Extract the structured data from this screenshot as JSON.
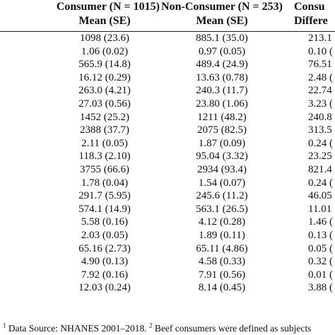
{
  "table": {
    "headers": {
      "consumer_line1": "Consumer (N = 1015)",
      "consumer_line2": "Mean (SE)",
      "nonconsumer_line1": "Non-Consumer (N = 253)",
      "nonconsumer_line2": "Mean (SE)",
      "diff_line1": "Consu",
      "diff_line2": "Differe"
    },
    "rows": [
      {
        "consumer": "1098 (23.6)",
        "nonconsumer": "885.1 (35.0)",
        "difference": "213.1"
      },
      {
        "consumer": "1.06 (0.02)",
        "nonconsumer": "0.97 (0.05)",
        "difference": "0.10 ("
      },
      {
        "consumer": "565.9 (14.8)",
        "nonconsumer": "489.4 (24.9)",
        "difference": "76.51"
      },
      {
        "consumer": "16.12 (0.29)",
        "nonconsumer": "13.63 (0.78)",
        "difference": "2.48 ("
      },
      {
        "consumer": "263.0 (4.21)",
        "nonconsumer": "240.3 (11.7)",
        "difference": "22.74"
      },
      {
        "consumer": "27.03 (0.56)",
        "nonconsumer": "23.80 (1.06)",
        "difference": "3.23 ("
      },
      {
        "consumer": "1452 (25.2)",
        "nonconsumer": "1211 (48.2)",
        "difference": "240.8"
      },
      {
        "consumer": "2388 (37.7)",
        "nonconsumer": "2075 (82.5)",
        "difference": "313.5"
      },
      {
        "consumer": "2.11 (0.05)",
        "nonconsumer": "1.87 (0.09)",
        "difference": "0.24 ("
      },
      {
        "consumer": "118.3 (2.10)",
        "nonconsumer": "95.04 (3.32)",
        "difference": "23.25"
      },
      {
        "consumer": "3755 (66.6)",
        "nonconsumer": "2934 (93.4)",
        "difference": "821.4"
      },
      {
        "consumer": "1.78 (0.04)",
        "nonconsumer": "1.54 (0.07)",
        "difference": "0.24 ("
      },
      {
        "consumer": "291.7 (5.95)",
        "nonconsumer": "245.6 (11.2)",
        "difference": "46.05"
      },
      {
        "consumer": "574.1 (14.9)",
        "nonconsumer": "563.1 (26.5)",
        "difference": "11.01"
      },
      {
        "consumer": "5.58 (0.16)",
        "nonconsumer": "4.12 (0.28)",
        "difference": "1.46 ("
      },
      {
        "consumer": "2.03 (0.05)",
        "nonconsumer": "1.89 (0.11)",
        "difference": "0.13 ("
      },
      {
        "consumer": "65.16 (2.73)",
        "nonconsumer": "65.11 (4.86)",
        "difference": "0.05 ("
      },
      {
        "consumer": "4.90 (0.13)",
        "nonconsumer": "4.58 (0.33)",
        "difference": "0.32 ("
      },
      {
        "consumer": "7.92 (0.16)",
        "nonconsumer": "7.91 (0.56)",
        "difference": "0.01 ("
      },
      {
        "consumer": "12.03 (0.24)",
        "nonconsumer": "8.14 (0.45)",
        "difference": "3.88 ("
      }
    ]
  },
  "footnote": {
    "marker1": "1",
    "text1": " Data Source: NHANES 2001–2018. ",
    "marker2": "2",
    "text2": " Beef consumers were defined as subjects"
  }
}
